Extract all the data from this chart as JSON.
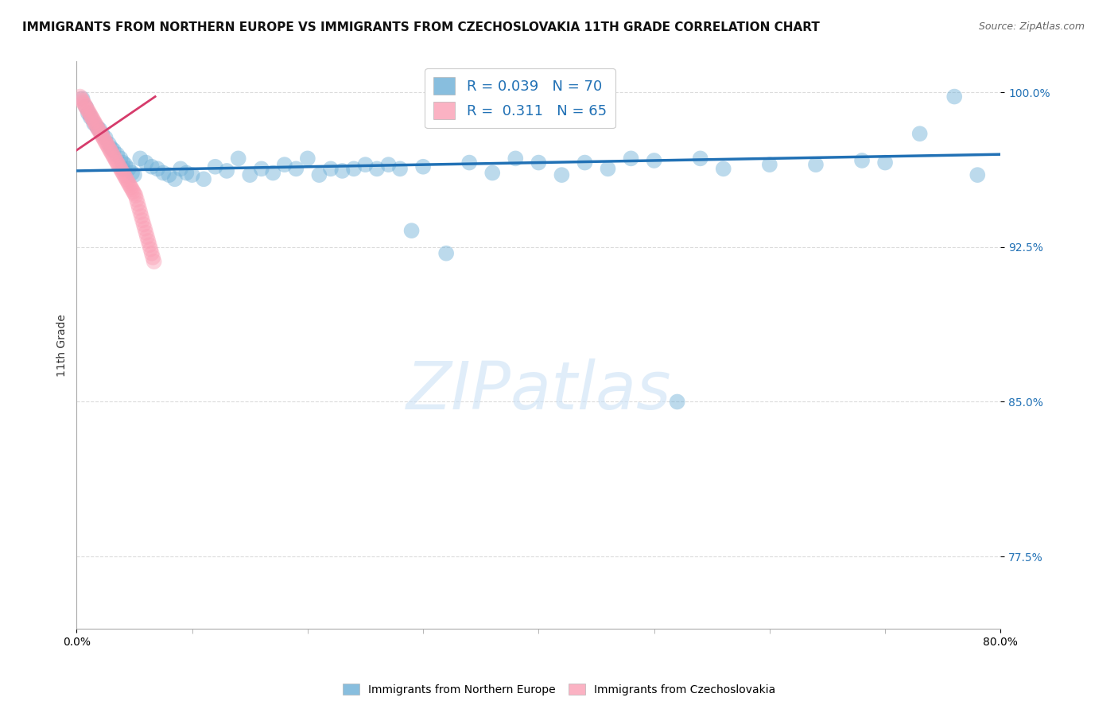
{
  "title": "IMMIGRANTS FROM NORTHERN EUROPE VS IMMIGRANTS FROM CZECHOSLOVAKIA 11TH GRADE CORRELATION CHART",
  "source": "Source: ZipAtlas.com",
  "xlabel_blue": "Immigrants from Northern Europe",
  "xlabel_pink": "Immigrants from Czechoslovakia",
  "ylabel": "11th Grade",
  "watermark": "ZIPatlas",
  "R_blue": 0.039,
  "N_blue": 70,
  "R_pink": 0.311,
  "N_pink": 65,
  "xmin": 0.0,
  "xmax": 0.8,
  "ymin": 0.74,
  "ymax": 1.015,
  "blue_color": "#6baed6",
  "pink_color": "#fa9fb5",
  "blue_line_color": "#2171b5",
  "pink_line_color": "#d63b6b",
  "blue_scatter_x": [
    0.005,
    0.008,
    0.01,
    0.012,
    0.015,
    0.018,
    0.02,
    0.022,
    0.025,
    0.028,
    0.03,
    0.032,
    0.035,
    0.038,
    0.04,
    0.042,
    0.045,
    0.048,
    0.05,
    0.055,
    0.06,
    0.065,
    0.07,
    0.075,
    0.08,
    0.085,
    0.09,
    0.095,
    0.1,
    0.11,
    0.12,
    0.13,
    0.14,
    0.15,
    0.16,
    0.17,
    0.18,
    0.19,
    0.2,
    0.21,
    0.22,
    0.23,
    0.24,
    0.25,
    0.26,
    0.27,
    0.28,
    0.29,
    0.3,
    0.32,
    0.34,
    0.36,
    0.38,
    0.4,
    0.42,
    0.44,
    0.46,
    0.48,
    0.5,
    0.52,
    0.54,
    0.56,
    0.6,
    0.64,
    0.68,
    0.7,
    0.73,
    0.76,
    0.78,
    0.04
  ],
  "blue_scatter_y": [
    0.997,
    0.993,
    0.99,
    0.988,
    0.985,
    0.983,
    0.982,
    0.98,
    0.978,
    0.975,
    0.973,
    0.972,
    0.97,
    0.968,
    0.966,
    0.965,
    0.963,
    0.961,
    0.96,
    0.968,
    0.966,
    0.964,
    0.963,
    0.961,
    0.96,
    0.958,
    0.963,
    0.961,
    0.96,
    0.958,
    0.964,
    0.962,
    0.968,
    0.96,
    0.963,
    0.961,
    0.965,
    0.963,
    0.968,
    0.96,
    0.963,
    0.962,
    0.963,
    0.965,
    0.963,
    0.965,
    0.963,
    0.933,
    0.964,
    0.922,
    0.966,
    0.961,
    0.968,
    0.966,
    0.96,
    0.966,
    0.963,
    0.968,
    0.967,
    0.85,
    0.968,
    0.963,
    0.965,
    0.965,
    0.967,
    0.966,
    0.98,
    0.998,
    0.96,
    0.963
  ],
  "pink_scatter_x": [
    0.003,
    0.004,
    0.005,
    0.006,
    0.007,
    0.008,
    0.009,
    0.01,
    0.011,
    0.012,
    0.013,
    0.014,
    0.015,
    0.016,
    0.017,
    0.018,
    0.019,
    0.02,
    0.021,
    0.022,
    0.023,
    0.024,
    0.025,
    0.026,
    0.027,
    0.028,
    0.029,
    0.03,
    0.031,
    0.032,
    0.033,
    0.034,
    0.035,
    0.036,
    0.037,
    0.038,
    0.039,
    0.04,
    0.041,
    0.042,
    0.043,
    0.044,
    0.045,
    0.046,
    0.047,
    0.048,
    0.049,
    0.05,
    0.051,
    0.052,
    0.053,
    0.054,
    0.055,
    0.056,
    0.057,
    0.058,
    0.059,
    0.06,
    0.061,
    0.062,
    0.063,
    0.064,
    0.065,
    0.066,
    0.067
  ],
  "pink_scatter_y": [
    0.998,
    0.997,
    0.996,
    0.995,
    0.994,
    0.993,
    0.992,
    0.991,
    0.99,
    0.989,
    0.988,
    0.987,
    0.986,
    0.985,
    0.984,
    0.983,
    0.982,
    0.981,
    0.98,
    0.979,
    0.978,
    0.977,
    0.976,
    0.975,
    0.974,
    0.973,
    0.972,
    0.971,
    0.97,
    0.969,
    0.968,
    0.967,
    0.966,
    0.965,
    0.964,
    0.963,
    0.962,
    0.961,
    0.96,
    0.959,
    0.958,
    0.957,
    0.956,
    0.955,
    0.954,
    0.953,
    0.952,
    0.951,
    0.95,
    0.948,
    0.946,
    0.944,
    0.942,
    0.94,
    0.938,
    0.936,
    0.934,
    0.932,
    0.93,
    0.928,
    0.926,
    0.924,
    0.922,
    0.92,
    0.918
  ],
  "title_fontsize": 11,
  "source_fontsize": 9,
  "axis_label_fontsize": 10,
  "tick_fontsize": 10,
  "legend_fontsize": 13,
  "watermark_fontsize": 60,
  "dot_size": 200,
  "dot_alpha": 0.45,
  "background_color": "#ffffff",
  "grid_color": "#cccccc",
  "ytick_labels": [
    "100.0%",
    "92.5%",
    "85.0%",
    "77.5%"
  ],
  "ytick_values": [
    1.0,
    0.925,
    0.85,
    0.775
  ],
  "xtick_labels": [
    "0.0%",
    "80.0%"
  ],
  "xtick_values": [
    0.0,
    0.8
  ],
  "blue_trend_x0": 0.0,
  "blue_trend_x1": 0.8,
  "blue_trend_y0": 0.962,
  "blue_trend_y1": 0.97,
  "pink_trend_x0": 0.0,
  "pink_trend_x1": 0.068,
  "pink_trend_y0": 0.972,
  "pink_trend_y1": 0.998
}
